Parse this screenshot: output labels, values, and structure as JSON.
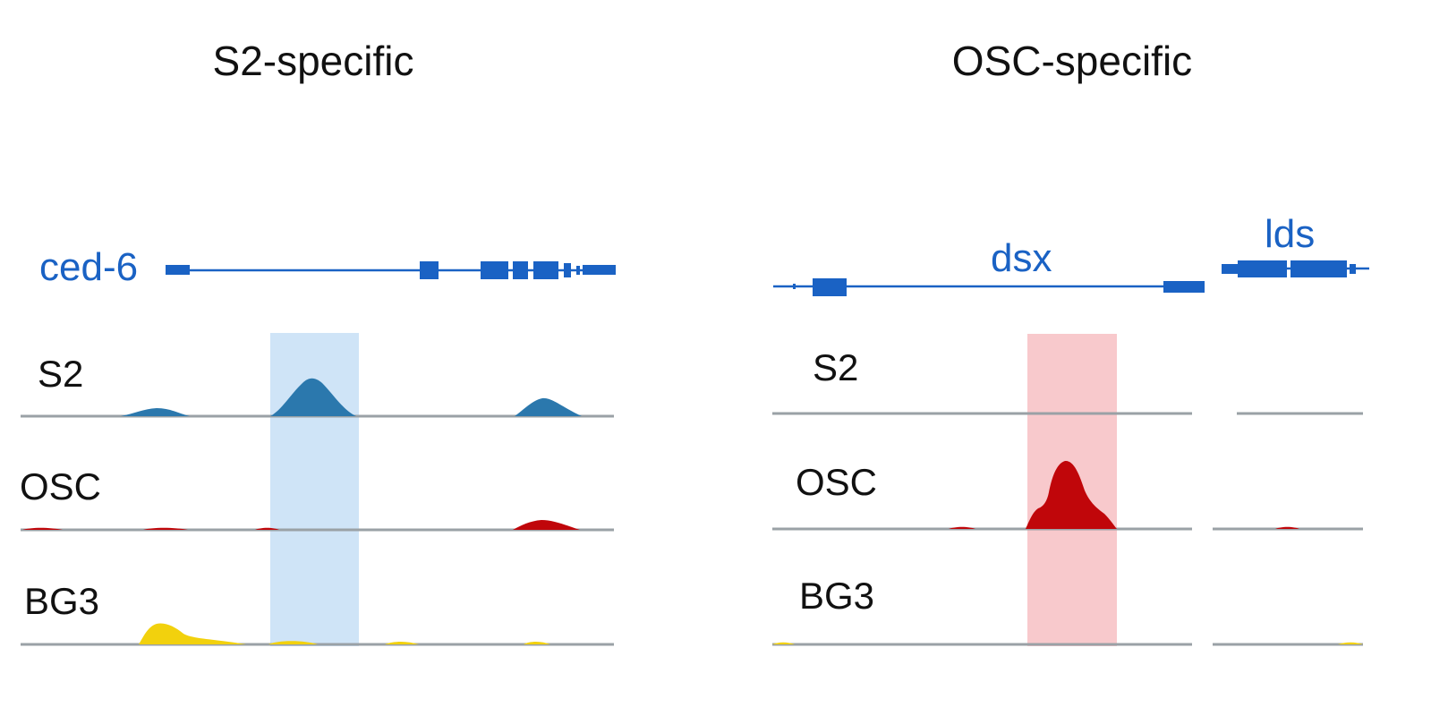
{
  "colors": {
    "gene": "#1a62c4",
    "s2": "#2b78ad",
    "osc": "#c0060a",
    "bg3": "#f2d10d",
    "baseline": "#9aa1a6",
    "highlight_left": "#cfe4f7",
    "highlight_right": "#f8c9cc"
  },
  "panels": [
    {
      "title": "S2-specific",
      "highlight": "S2",
      "genes": [
        {
          "name": "ced-6"
        }
      ],
      "tracks": [
        {
          "label": "S2",
          "color": "s2"
        },
        {
          "label": "OSC",
          "color": "osc"
        },
        {
          "label": "BG3",
          "color": "bg3"
        }
      ]
    },
    {
      "title": "OSC-specific",
      "highlight": "OSC",
      "genes": [
        {
          "name": "dsx"
        },
        {
          "name": "lds"
        }
      ],
      "tracks": [
        {
          "label": "S2",
          "color": "s2"
        },
        {
          "label": "OSC",
          "color": "osc"
        },
        {
          "label": "BG3",
          "color": "bg3"
        }
      ]
    }
  ]
}
